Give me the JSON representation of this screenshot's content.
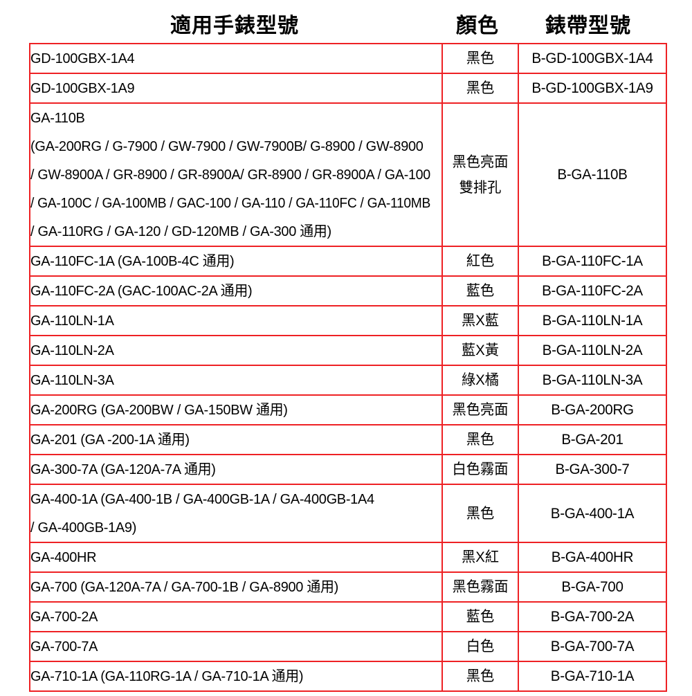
{
  "page": {
    "background": "#ffffff",
    "text_color": "#000000"
  },
  "table": {
    "grid_color": "#ee2124",
    "headers": {
      "watch": "適用手錶型號",
      "color": "顏色",
      "strap": "錶帶型號"
    },
    "rows": [
      {
        "watch": [
          "GD-100GBX-1A4"
        ],
        "color": [
          "黑色"
        ],
        "strap": "B-GD-100GBX-1A4"
      },
      {
        "watch": [
          "GD-100GBX-1A9"
        ],
        "color": [
          "黑色"
        ],
        "strap": "B-GD-100GBX-1A9"
      },
      {
        "watch": [
          "GA-110B",
          "(GA-200RG / G-7900 / GW-7900 / GW-7900B/ G-8900 / GW-8900",
          "/ GW-8900A / GR-8900 / GR-8900A/ GR-8900 / GR-8900A / GA-100",
          "/ GA-100C / GA-100MB / GAC-100 / GA-110 / GA-110FC / GA-110MB",
          "/ GA-110RG / GA-120 / GD-120MB / GA-300 通用)"
        ],
        "color": [
          "黑色亮面",
          "雙排孔"
        ],
        "strap": "B-GA-110B"
      },
      {
        "watch": [
          "GA-110FC-1A (GA-100B-4C 通用)"
        ],
        "color": [
          "紅色"
        ],
        "strap": "B-GA-110FC-1A"
      },
      {
        "watch": [
          "GA-110FC-2A (GAC-100AC-2A 通用)"
        ],
        "color": [
          "藍色"
        ],
        "strap": "B-GA-110FC-2A"
      },
      {
        "watch": [
          "GA-110LN-1A"
        ],
        "color": [
          "黑X藍"
        ],
        "strap": "B-GA-110LN-1A"
      },
      {
        "watch": [
          "GA-110LN-2A"
        ],
        "color": [
          "藍X黃"
        ],
        "strap": "B-GA-110LN-2A"
      },
      {
        "watch": [
          "GA-110LN-3A"
        ],
        "color": [
          "綠X橘"
        ],
        "strap": "B-GA-110LN-3A"
      },
      {
        "watch": [
          "GA-200RG (GA-200BW / GA-150BW 通用)"
        ],
        "color": [
          "黑色亮面"
        ],
        "strap": "B-GA-200RG"
      },
      {
        "watch": [
          "GA-201 (GA -200-1A 通用)"
        ],
        "color": [
          "黑色"
        ],
        "strap": "B-GA-201"
      },
      {
        "watch": [
          "GA-300-7A (GA-120A-7A 通用)"
        ],
        "color": [
          "白色霧面"
        ],
        "strap": "B-GA-300-7"
      },
      {
        "watch": [
          "GA-400-1A (GA-400-1B / GA-400GB-1A / GA-400GB-1A4",
          "/ GA-400GB-1A9)"
        ],
        "color": [
          "黑色"
        ],
        "strap": "B-GA-400-1A"
      },
      {
        "watch": [
          "GA-400HR"
        ],
        "color": [
          "黑X紅"
        ],
        "strap": "B-GA-400HR"
      },
      {
        "watch": [
          "GA-700 (GA-120A-7A / GA-700-1B / GA-8900 通用)"
        ],
        "color": [
          "黑色霧面"
        ],
        "strap": "B-GA-700"
      },
      {
        "watch": [
          "GA-700-2A"
        ],
        "color": [
          "藍色"
        ],
        "strap": "B-GA-700-2A"
      },
      {
        "watch": [
          "GA-700-7A"
        ],
        "color": [
          "白色"
        ],
        "strap": "B-GA-700-7A"
      },
      {
        "watch": [
          "GA-710-1A (GA-110RG-1A / GA-710-1A 通用)"
        ],
        "color": [
          "黑色"
        ],
        "strap": "B-GA-710-1A"
      }
    ]
  }
}
